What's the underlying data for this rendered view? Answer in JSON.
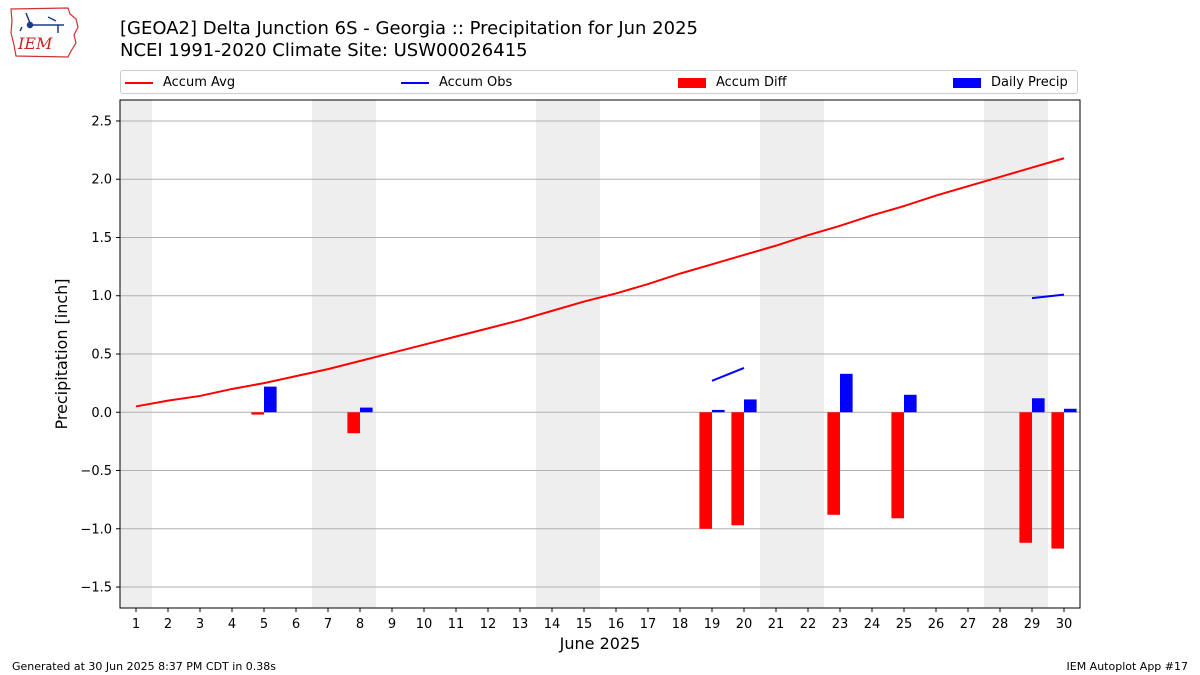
{
  "header": {
    "title_line1": "[GEOA2] Delta Junction 6S - Georgia :: Precipitation for Jun 2025",
    "title_line2": "NCEI 1991-2020 Climate Site: USW00026415",
    "logo_text": "IEM"
  },
  "footer": {
    "generated": "Generated at 30 Jun 2025 8:37 PM CDT in 0.38s",
    "app": "IEM Autoplot App #17"
  },
  "legend": [
    {
      "label": "Accum Avg",
      "color": "#ff0000",
      "kind": "line"
    },
    {
      "label": "Accum Obs",
      "color": "#0000ff",
      "kind": "line"
    },
    {
      "label": "Accum Diff",
      "color": "#ff0000",
      "kind": "box"
    },
    {
      "label": "Daily Precip",
      "color": "#0000ff",
      "kind": "box"
    }
  ],
  "chart_data": {
    "type": "bar",
    "title": "[GEOA2] Delta Junction 6S - Georgia :: Precipitation for Jun 2025",
    "xlabel": "June 2025",
    "ylabel": "Precipitation [inch]",
    "xlim": [
      0.5,
      30.5
    ],
    "ylim": [
      -1.68,
      2.68
    ],
    "yticks": [
      "2.5",
      "2.0",
      "1.5",
      "1.0",
      "0.5",
      "0.0",
      "−0.5",
      "−1.0",
      "−1.5"
    ],
    "ytick_values": [
      2.5,
      2.0,
      1.5,
      1.0,
      0.5,
      0.0,
      -0.5,
      -1.0,
      -1.5
    ],
    "days": [
      1,
      2,
      3,
      4,
      5,
      6,
      7,
      8,
      9,
      10,
      11,
      12,
      13,
      14,
      15,
      16,
      17,
      18,
      19,
      20,
      21,
      22,
      23,
      24,
      25,
      26,
      27,
      28,
      29,
      30
    ],
    "grid": "horizontal",
    "weekend_shading": [
      [
        0.5,
        1.5
      ],
      [
        6.5,
        8.5
      ],
      [
        13.5,
        15.5
      ],
      [
        20.5,
        22.5
      ],
      [
        27.5,
        29.5
      ]
    ],
    "series": [
      {
        "name": "Accum Avg",
        "kind": "line",
        "color": "#ff0000",
        "values": [
          0.05,
          0.1,
          0.14,
          0.2,
          0.25,
          0.31,
          0.37,
          0.44,
          0.51,
          0.58,
          0.65,
          0.72,
          0.79,
          0.87,
          0.95,
          1.02,
          1.1,
          1.19,
          1.27,
          1.35,
          1.43,
          1.52,
          1.6,
          1.69,
          1.77,
          1.86,
          1.94,
          2.02,
          2.1,
          2.18
        ]
      },
      {
        "name": "Accum Obs",
        "kind": "line",
        "color": "#0000ff",
        "segments": [
          {
            "days": [
              19,
              20
            ],
            "values": [
              0.27,
              0.38
            ]
          },
          {
            "days": [
              29,
              30
            ],
            "values": [
              0.98,
              1.01
            ]
          }
        ]
      },
      {
        "name": "Accum Diff",
        "kind": "bar",
        "color": "#ff0000",
        "days": [
          5,
          8,
          19,
          20,
          23,
          25,
          29,
          30
        ],
        "values": [
          -0.02,
          -0.18,
          -1.0,
          -0.97,
          -0.88,
          -0.91,
          -1.12,
          -1.17
        ]
      },
      {
        "name": "Daily Precip",
        "kind": "bar",
        "color": "#0000ff",
        "days": [
          5,
          8,
          19,
          20,
          23,
          25,
          29,
          30
        ],
        "values": [
          0.22,
          0.04,
          0.02,
          0.11,
          0.33,
          0.15,
          0.12,
          0.03
        ]
      }
    ]
  }
}
